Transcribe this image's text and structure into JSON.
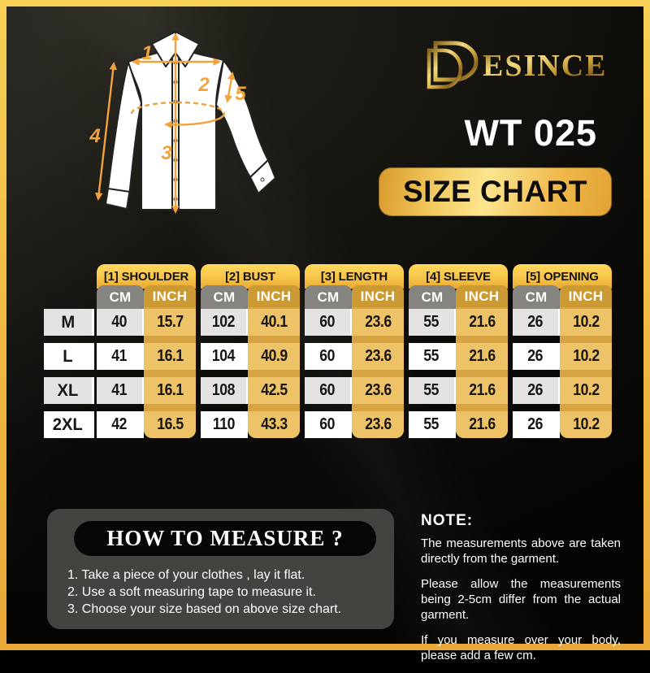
{
  "brand": {
    "monogram": "D",
    "name_rest": "ESINCE",
    "gold_color": "#e8c05a"
  },
  "product_code": "WT 025",
  "badge": {
    "label": "SIZE CHART"
  },
  "accent_orange": "#f2a33c",
  "diagram": {
    "labels": [
      "1",
      "2",
      "3",
      "4",
      "5"
    ]
  },
  "size_chart": {
    "columns": [
      "[1] SHOULDER",
      "[2] BUST",
      "[3] LENGTH",
      "[4] SLEEVE",
      "[5] OPENING"
    ],
    "unit_cm": "CM",
    "unit_inch": "INCH",
    "rows": [
      {
        "size": "M",
        "values": [
          "40",
          "15.7",
          "102",
          "40.1",
          "60",
          "23.6",
          "55",
          "21.6",
          "26",
          "10.2"
        ]
      },
      {
        "size": "L",
        "values": [
          "41",
          "16.1",
          "104",
          "40.9",
          "60",
          "23.6",
          "55",
          "21.6",
          "26",
          "10.2"
        ]
      },
      {
        "size": "XL",
        "values": [
          "41",
          "16.1",
          "108",
          "42.5",
          "60",
          "23.6",
          "55",
          "21.6",
          "26",
          "10.2"
        ]
      },
      {
        "size": "2XL",
        "values": [
          "42",
          "16.5",
          "110",
          "43.3",
          "60",
          "23.6",
          "55",
          "21.6",
          "26",
          "10.2"
        ]
      }
    ]
  },
  "how_to_measure": {
    "title": "HOW TO MEASURE ?",
    "steps": [
      "1. Take a piece of your clothes , lay it flat.",
      "2. Use a soft measuring tape to measure it.",
      "3. Choose your size based on above size chart."
    ]
  },
  "note": {
    "title": "NOTE:",
    "paragraphs": [
      "The measurements above are taken directly from the garment.",
      "Please allow the measurements being 2-5cm differ from the actual garment.",
      "If you measure over your body, please add a few cm."
    ]
  },
  "chart_data": {
    "type": "table",
    "title": "SIZE CHART",
    "subtitle": "WT 025",
    "columns": [
      "SIZE",
      "SHOULDER CM",
      "SHOULDER INCH",
      "BUST CM",
      "BUST INCH",
      "LENGTH CM",
      "LENGTH INCH",
      "SLEEVE CM",
      "SLEEVE INCH",
      "OPENING CM",
      "OPENING INCH"
    ],
    "rows": [
      [
        "M",
        40,
        15.7,
        102,
        40.1,
        60,
        23.6,
        55,
        21.6,
        26,
        10.2
      ],
      [
        "L",
        41,
        16.1,
        104,
        40.9,
        60,
        23.6,
        55,
        21.6,
        26,
        10.2
      ],
      [
        "XL",
        41,
        16.1,
        108,
        42.5,
        60,
        23.6,
        55,
        21.6,
        26,
        10.2
      ],
      [
        "2XL",
        42,
        16.5,
        110,
        43.3,
        60,
        23.6,
        55,
        21.6,
        26,
        10.2
      ]
    ]
  }
}
